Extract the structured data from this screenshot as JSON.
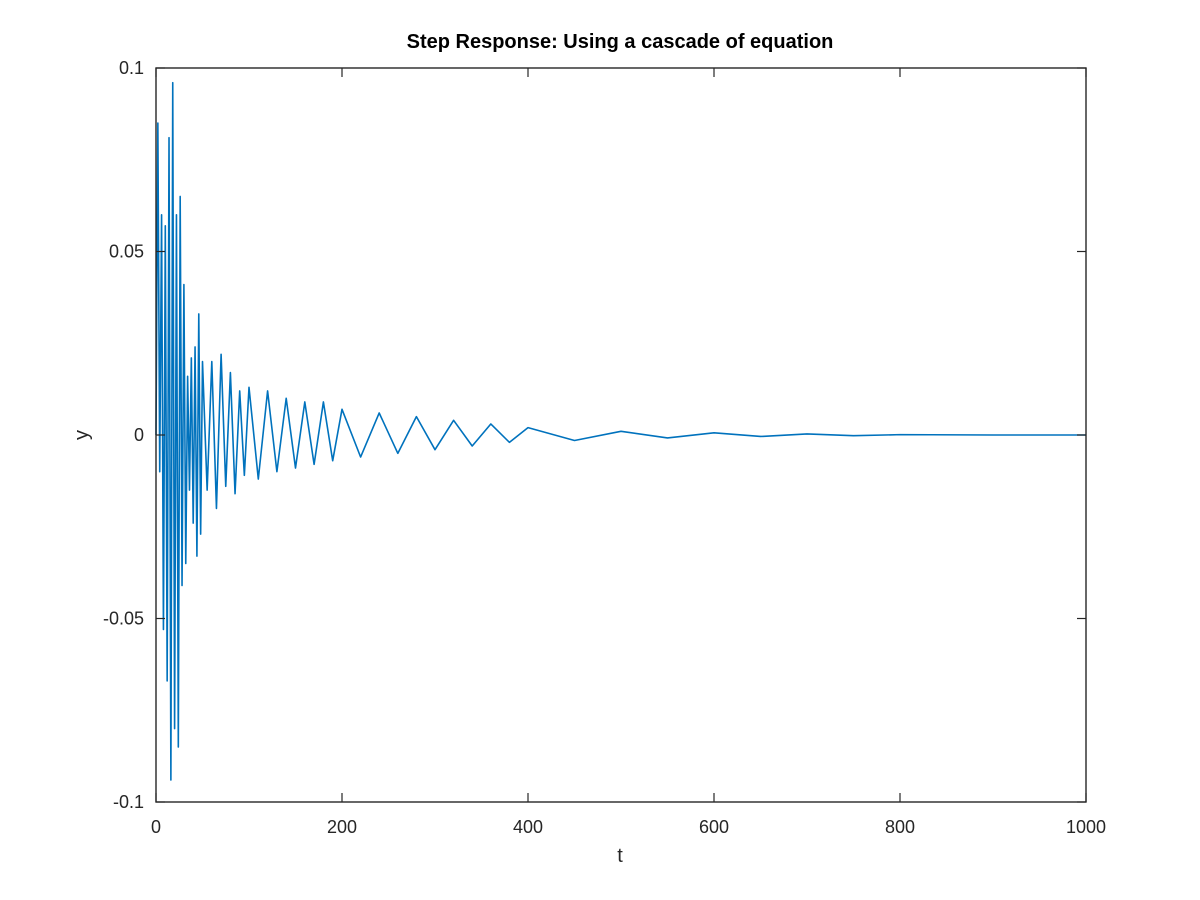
{
  "chart_data": {
    "type": "line",
    "title": "Step Response: Using a cascade of equation",
    "xlabel": "t",
    "ylabel": "y",
    "xlim": [
      0,
      1000
    ],
    "ylim": [
      -0.1,
      0.1
    ],
    "xticks": [
      0,
      200,
      400,
      600,
      800,
      1000
    ],
    "xtick_labels": [
      "0",
      "200",
      "400",
      "600",
      "800",
      "1000"
    ],
    "yticks": [
      -0.1,
      -0.05,
      0,
      0.05,
      0.1
    ],
    "ytick_labels": [
      "-0.1",
      "-0.05",
      "0",
      "0.05",
      "0.1"
    ],
    "grid": false,
    "box": true,
    "series": [
      {
        "color": "#0072bd",
        "t_range": [
          0,
          1000
        ],
        "points": [
          [
            0,
            0
          ],
          [
            2,
            0.085
          ],
          [
            4,
            -0.01
          ],
          [
            6,
            0.06
          ],
          [
            8,
            -0.053
          ],
          [
            10,
            0.057
          ],
          [
            12,
            -0.067
          ],
          [
            14,
            0.081
          ],
          [
            16,
            -0.094
          ],
          [
            18,
            0.096
          ],
          [
            20,
            -0.08
          ],
          [
            22,
            0.06
          ],
          [
            24,
            -0.085
          ],
          [
            26,
            0.065
          ],
          [
            28,
            -0.041
          ],
          [
            30,
            0.041
          ],
          [
            32,
            -0.035
          ],
          [
            34,
            0.016
          ],
          [
            36,
            -0.015
          ],
          [
            38,
            0.021
          ],
          [
            40,
            -0.024
          ],
          [
            42,
            0.024
          ],
          [
            44,
            -0.033
          ],
          [
            46,
            0.033
          ],
          [
            48,
            -0.027
          ],
          [
            50,
            0.02
          ],
          [
            55,
            -0.015
          ],
          [
            60,
            0.02
          ],
          [
            65,
            -0.02
          ],
          [
            70,
            0.022
          ],
          [
            75,
            -0.014
          ],
          [
            80,
            0.017
          ],
          [
            85,
            -0.016
          ],
          [
            90,
            0.012
          ],
          [
            95,
            -0.011
          ],
          [
            100,
            0.013
          ],
          [
            110,
            -0.012
          ],
          [
            120,
            0.012
          ],
          [
            130,
            -0.01
          ],
          [
            140,
            0.01
          ],
          [
            150,
            -0.009
          ],
          [
            160,
            0.009
          ],
          [
            170,
            -0.008
          ],
          [
            180,
            0.009
          ],
          [
            190,
            -0.007
          ],
          [
            200,
            0.007
          ],
          [
            220,
            -0.006
          ],
          [
            240,
            0.006
          ],
          [
            260,
            -0.005
          ],
          [
            280,
            0.005
          ],
          [
            300,
            -0.004
          ],
          [
            320,
            0.004
          ],
          [
            340,
            -0.003
          ],
          [
            360,
            0.003
          ],
          [
            380,
            -0.002
          ],
          [
            400,
            0.002
          ],
          [
            450,
            -0.0015
          ],
          [
            500,
            0.001
          ],
          [
            550,
            -0.0008
          ],
          [
            600,
            0.0006
          ],
          [
            650,
            -0.0004
          ],
          [
            700,
            0.0003
          ],
          [
            750,
            -0.0002
          ],
          [
            800,
            0.0001
          ],
          [
            900,
            0
          ],
          [
            1000,
            0
          ]
        ]
      }
    ]
  }
}
